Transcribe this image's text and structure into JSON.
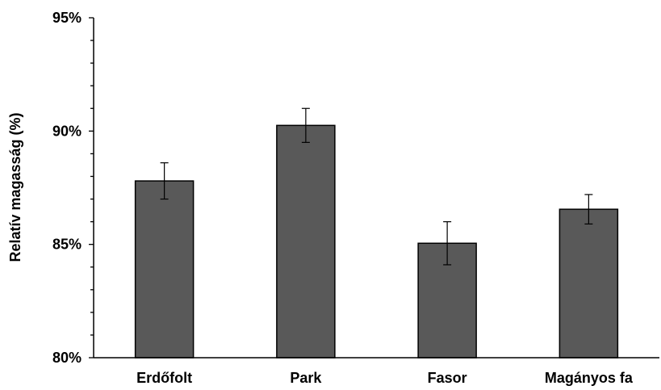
{
  "chart_data": {
    "type": "bar",
    "title": "",
    "xlabel": "",
    "ylabel": "Relatív magasság (%)",
    "categories": [
      "Erdőfolt",
      "Park",
      "Fasor",
      "Magányos fa"
    ],
    "values": [
      87.8,
      90.25,
      85.05,
      86.55
    ],
    "error_bars": [
      0.8,
      0.75,
      0.95,
      0.65
    ],
    "ylim": [
      80,
      95
    ],
    "y_ticks": [
      80,
      85,
      90,
      95
    ],
    "y_tick_labels": [
      "80%",
      "85%",
      "90%",
      "95%"
    ],
    "y_minor_step": 1,
    "grid": false,
    "legend": "none",
    "bar_color": "#595959",
    "bar_edge_color": "#000000"
  }
}
